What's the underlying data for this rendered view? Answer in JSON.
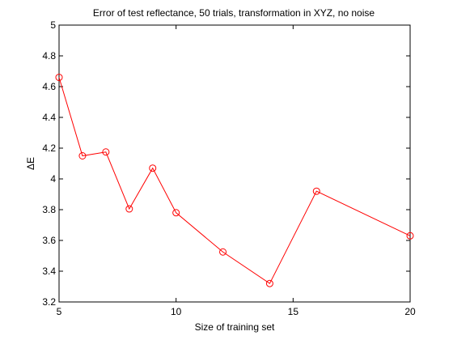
{
  "chart_data": {
    "type": "line",
    "title": "Error of test reflectance, 50 trials, transformation in XYZ, no noise",
    "xlabel": "Size of training set",
    "ylabel": "ΔE",
    "xlim": [
      5,
      20
    ],
    "ylim": [
      3.2,
      5
    ],
    "xticks": [
      5,
      10,
      15,
      20
    ],
    "xtick_labels": [
      "5",
      "10",
      "15",
      "20"
    ],
    "yticks": [
      3.2,
      3.4,
      3.6,
      3.8,
      4,
      4.2,
      4.4,
      4.6,
      4.8,
      5
    ],
    "ytick_labels": [
      "3.2",
      "3.4",
      "3.6",
      "3.8",
      "4",
      "4.2",
      "4.4",
      "4.6",
      "4.8",
      "5"
    ],
    "grid": false,
    "series": [
      {
        "color": "#ff0000",
        "marker": "circle",
        "x": [
          5,
          6,
          7,
          8,
          9,
          10,
          12,
          14,
          16,
          20
        ],
        "y": [
          4.66,
          4.15,
          4.175,
          3.805,
          4.07,
          3.78,
          3.525,
          3.32,
          3.92,
          3.63
        ]
      }
    ]
  }
}
